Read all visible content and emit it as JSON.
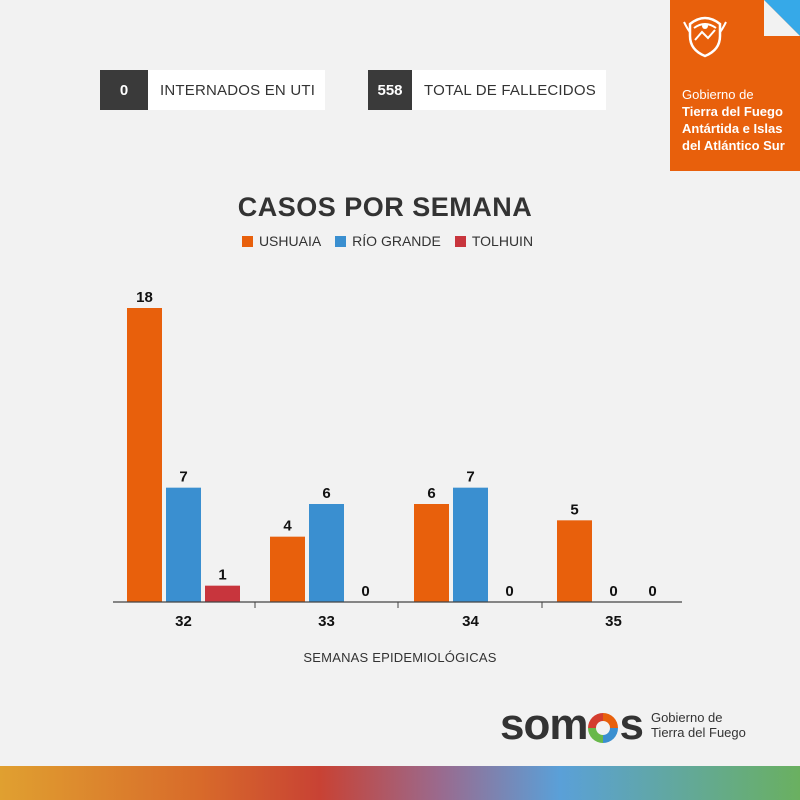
{
  "stats": [
    {
      "value": "0",
      "label": "INTERNADOS EN UTI"
    },
    {
      "value": "558",
      "label": "TOTAL DE FALLECIDOS"
    }
  ],
  "gov": {
    "line1": "Gobierno de",
    "line2": "Tierra del Fuego",
    "line3": "Antártida e Islas",
    "line4": "del Atlántico Sur",
    "crest": "provincial-crest-icon"
  },
  "colors": {
    "ushuaia": "#e8600c",
    "rio_grande": "#3a8fd0",
    "tolhuin": "#c8353d",
    "gov_orange": "#e8600c",
    "corner_blue": "#36a9e8"
  },
  "chart_data": {
    "type": "bar",
    "title": "CASOS POR SEMANA",
    "xlabel": "SEMANAS EPIDEMIOLÓGICAS",
    "ylabel": "",
    "categories": [
      "32",
      "33",
      "34",
      "35"
    ],
    "series": [
      {
        "name": "USHUAIA",
        "values": [
          18,
          4,
          6,
          5
        ]
      },
      {
        "name": "RÍO GRANDE",
        "values": [
          7,
          6,
          7,
          0
        ]
      },
      {
        "name": "TOLHUIN",
        "values": [
          1,
          0,
          0,
          0
        ]
      }
    ],
    "ylim": [
      0,
      18
    ],
    "grid": false,
    "legend": "top-center"
  },
  "logo": {
    "word_before": "som",
    "word_after": "s",
    "sub1": "Gobierno de",
    "sub2": "Tierra del Fuego"
  }
}
